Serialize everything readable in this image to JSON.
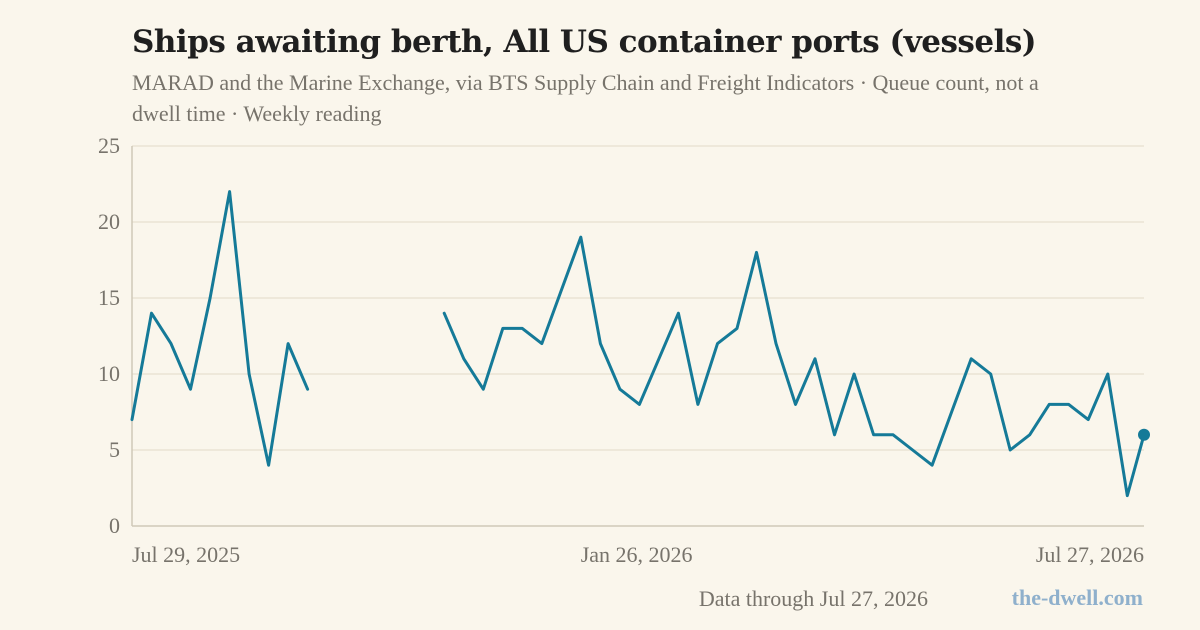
{
  "header": {
    "title": "Ships awaiting berth, All US container ports (vessels)",
    "subtitle": "MARAD and the Marine Exchange, via BTS Supply Chain and Freight Indicators · Queue count, not a dwell time · Weekly reading"
  },
  "footer": {
    "note": "Data through Jul 27, 2026",
    "brand": "the-dwell.com"
  },
  "colors": {
    "line": "#157a98",
    "grid": "#e9e3d4",
    "axis": "#cfc8b8",
    "text": "#77736b",
    "background": "#faf6ec"
  },
  "chart_data": {
    "type": "line",
    "title": "Ships awaiting berth, All US container ports (vessels)",
    "xlabel": "",
    "ylabel": "",
    "ylim": [
      0,
      25
    ],
    "yticks": [
      0,
      5,
      10,
      15,
      20,
      25
    ],
    "xlim": [
      "2025-07-29",
      "2026-07-27"
    ],
    "xticks": [
      {
        "date": "2025-07-29",
        "label": "Jul 29, 2025"
      },
      {
        "date": "2026-01-26",
        "label": "Jan 26, 2026"
      },
      {
        "date": "2026-07-27",
        "label": "Jul 27, 2026"
      }
    ],
    "grid": true,
    "legend": "none",
    "series": [
      {
        "x": [
          "2025-07-29",
          "2025-08-05",
          "2025-08-12",
          "2025-08-19",
          "2025-08-26",
          "2025-09-02",
          "2025-09-09",
          "2025-09-16",
          "2025-09-23",
          "2025-09-30",
          "2025-10-07",
          "2025-10-14",
          "2025-10-21",
          "2025-10-28",
          "2025-11-04",
          "2025-11-11",
          "2025-11-18",
          "2025-11-25",
          "2025-12-02",
          "2025-12-09",
          "2025-12-16",
          "2025-12-23",
          "2025-12-30",
          "2026-01-06",
          "2026-01-13",
          "2026-01-20",
          "2026-01-27",
          "2026-02-03",
          "2026-02-10",
          "2026-02-17",
          "2026-02-24",
          "2026-03-03",
          "2026-03-10",
          "2026-03-17",
          "2026-03-24",
          "2026-03-31",
          "2026-04-07",
          "2026-04-14",
          "2026-04-21",
          "2026-04-28",
          "2026-05-05",
          "2026-05-12",
          "2026-05-19",
          "2026-05-26",
          "2026-06-02",
          "2026-06-09",
          "2026-06-16",
          "2026-06-23",
          "2026-06-30",
          "2026-07-07",
          "2026-07-14",
          "2026-07-21",
          "2026-07-27"
        ],
        "values": [
          7,
          14,
          12,
          9,
          15,
          22,
          10,
          4,
          12,
          9,
          null,
          null,
          null,
          null,
          null,
          null,
          14,
          11,
          9,
          13,
          13,
          12,
          15.5,
          19,
          12,
          9,
          8,
          11,
          14,
          8,
          12,
          13,
          18,
          12,
          8,
          11,
          6,
          10,
          6,
          6,
          5,
          4,
          7.5,
          11,
          10,
          5,
          6,
          8,
          8,
          7,
          10,
          2,
          6
        ]
      }
    ],
    "last_point_marker": true
  }
}
